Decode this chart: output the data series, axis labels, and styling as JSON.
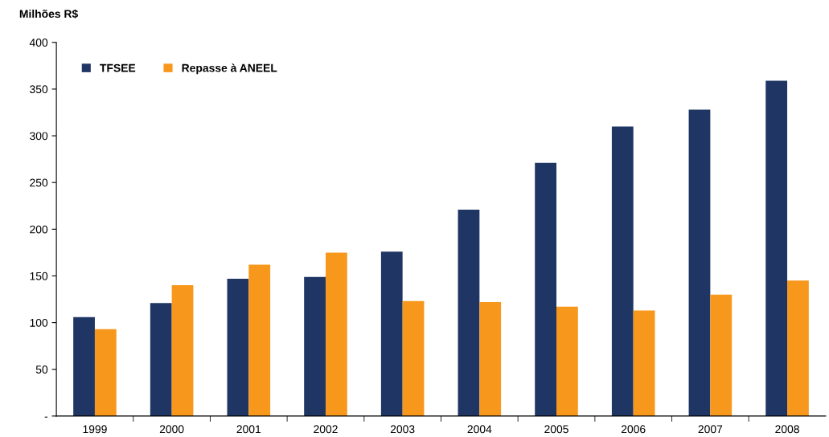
{
  "chart_data": {
    "type": "bar",
    "ylabel": "Milhões R$",
    "categories": [
      "1999",
      "2000",
      "2001",
      "2002",
      "2003",
      "2004",
      "2005",
      "2006",
      "2007",
      "2008"
    ],
    "series": [
      {
        "name": "TFSEE",
        "color": "#1f3664",
        "values": [
          106,
          121,
          147,
          149,
          176,
          221,
          271,
          310,
          328,
          359
        ]
      },
      {
        "name": "Repasse à ANEEL",
        "color": "#f7971c",
        "values": [
          93,
          140,
          162,
          175,
          123,
          122,
          117,
          113,
          130,
          145
        ]
      }
    ],
    "ylim": [
      0,
      400
    ],
    "yticks": [
      {
        "value": 0,
        "label": "-"
      },
      50,
      100,
      150,
      200,
      250,
      300,
      350,
      400
    ],
    "grid": false,
    "legend": "top left"
  }
}
